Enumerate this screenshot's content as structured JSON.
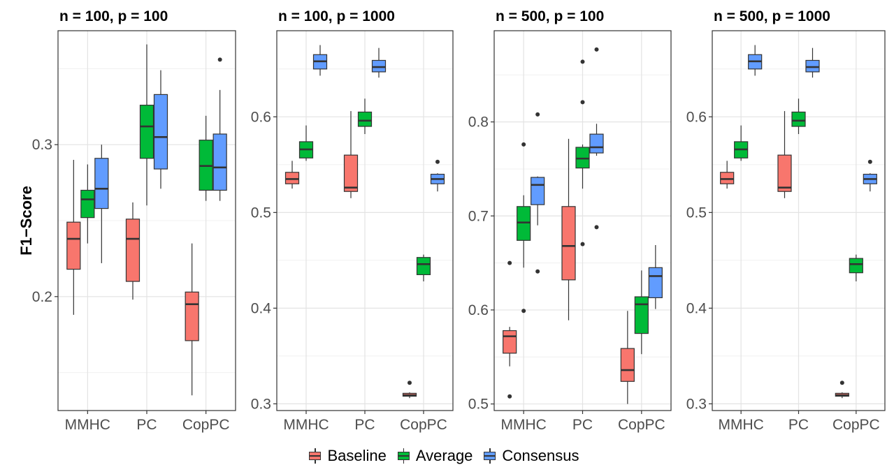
{
  "chart_data": {
    "type": "boxplot",
    "ylabel": "F1−Score",
    "categories": [
      "MMHC",
      "PC",
      "CopPC"
    ],
    "series_names": [
      "Baseline",
      "Average",
      "Consensus"
    ],
    "colors": {
      "Baseline": "#F8766D",
      "Average": "#00BA38",
      "Consensus": "#619CFF"
    },
    "legend_position": "bottom",
    "grid": true,
    "panels": [
      {
        "title": "n = 100, p = 100",
        "ylim": [
          0.125,
          0.375
        ],
        "yticks": [
          0.2,
          0.3
        ],
        "ytick_labels": [
          "0.2",
          "0.3"
        ],
        "boxes": [
          {
            "category": "MMHC",
            "series": "Baseline",
            "lower_whisker": 0.188,
            "q1": 0.218,
            "median": 0.238,
            "q3": 0.249,
            "upper_whisker": 0.29,
            "outliers": []
          },
          {
            "category": "MMHC",
            "series": "Average",
            "lower_whisker": 0.235,
            "q1": 0.252,
            "median": 0.264,
            "q3": 0.27,
            "upper_whisker": 0.287,
            "outliers": []
          },
          {
            "category": "MMHC",
            "series": "Consensus",
            "lower_whisker": 0.222,
            "q1": 0.258,
            "median": 0.271,
            "q3": 0.291,
            "upper_whisker": 0.3,
            "outliers": []
          },
          {
            "category": "PC",
            "series": "Baseline",
            "lower_whisker": 0.198,
            "q1": 0.21,
            "median": 0.238,
            "q3": 0.251,
            "upper_whisker": 0.262,
            "outliers": []
          },
          {
            "category": "PC",
            "series": "Average",
            "lower_whisker": 0.26,
            "q1": 0.291,
            "median": 0.312,
            "q3": 0.326,
            "upper_whisker": 0.366,
            "outliers": []
          },
          {
            "category": "PC",
            "series": "Consensus",
            "lower_whisker": 0.271,
            "q1": 0.284,
            "median": 0.305,
            "q3": 0.333,
            "upper_whisker": 0.349,
            "outliers": []
          },
          {
            "category": "CopPC",
            "series": "Baseline",
            "lower_whisker": 0.135,
            "q1": 0.171,
            "median": 0.195,
            "q3": 0.203,
            "upper_whisker": 0.235,
            "outliers": []
          },
          {
            "category": "CopPC",
            "series": "Average",
            "lower_whisker": 0.263,
            "q1": 0.27,
            "median": 0.286,
            "q3": 0.303,
            "upper_whisker": 0.319,
            "outliers": []
          },
          {
            "category": "CopPC",
            "series": "Consensus",
            "lower_whisker": 0.263,
            "q1": 0.27,
            "median": 0.285,
            "q3": 0.307,
            "upper_whisker": 0.336,
            "outliers": [
              0.356
            ]
          }
        ]
      },
      {
        "title": "n = 100, p = 1000",
        "ylim": [
          0.293,
          0.69
        ],
        "yticks": [
          0.3,
          0.4,
          0.5,
          0.6
        ],
        "ytick_labels": [
          "0.3",
          "0.4",
          "0.5",
          "0.6"
        ],
        "boxes": [
          {
            "category": "MMHC",
            "series": "Baseline",
            "lower_whisker": 0.525,
            "q1": 0.53,
            "median": 0.535,
            "q3": 0.542,
            "upper_whisker": 0.554,
            "outliers": []
          },
          {
            "category": "MMHC",
            "series": "Average",
            "lower_whisker": 0.554,
            "q1": 0.557,
            "median": 0.566,
            "q3": 0.574,
            "upper_whisker": 0.591,
            "outliers": []
          },
          {
            "category": "MMHC",
            "series": "Consensus",
            "lower_whisker": 0.643,
            "q1": 0.65,
            "median": 0.658,
            "q3": 0.665,
            "upper_whisker": 0.675,
            "outliers": []
          },
          {
            "category": "PC",
            "series": "Baseline",
            "lower_whisker": 0.515,
            "q1": 0.522,
            "median": 0.526,
            "q3": 0.56,
            "upper_whisker": 0.606,
            "outliers": []
          },
          {
            "category": "PC",
            "series": "Average",
            "lower_whisker": 0.582,
            "q1": 0.59,
            "median": 0.596,
            "q3": 0.605,
            "upper_whisker": 0.619,
            "outliers": []
          },
          {
            "category": "PC",
            "series": "Consensus",
            "lower_whisker": 0.641,
            "q1": 0.647,
            "median": 0.652,
            "q3": 0.659,
            "upper_whisker": 0.672,
            "outliers": []
          },
          {
            "category": "CopPC",
            "series": "Baseline",
            "lower_whisker": 0.306,
            "q1": 0.308,
            "median": 0.309,
            "q3": 0.311,
            "upper_whisker": 0.312,
            "outliers": [
              0.322
            ]
          },
          {
            "category": "CopPC",
            "series": "Average",
            "lower_whisker": 0.428,
            "q1": 0.435,
            "median": 0.446,
            "q3": 0.453,
            "upper_whisker": 0.456,
            "outliers": []
          },
          {
            "category": "CopPC",
            "series": "Consensus",
            "lower_whisker": 0.522,
            "q1": 0.53,
            "median": 0.535,
            "q3": 0.54,
            "upper_whisker": 0.541,
            "outliers": [
              0.553
            ]
          }
        ]
      },
      {
        "title": "n = 500, p = 100",
        "ylim": [
          0.493,
          0.897
        ],
        "yticks": [
          0.5,
          0.6,
          0.7,
          0.8
        ],
        "ytick_labels": [
          "0.5",
          "0.6",
          "0.7",
          "0.8"
        ],
        "boxes": [
          {
            "category": "MMHC",
            "series": "Baseline",
            "lower_whisker": 0.54,
            "q1": 0.554,
            "median": 0.572,
            "q3": 0.578,
            "upper_whisker": 0.582,
            "outliers": [
              0.65,
              0.508
            ]
          },
          {
            "category": "MMHC",
            "series": "Average",
            "lower_whisker": 0.645,
            "q1": 0.674,
            "median": 0.693,
            "q3": 0.71,
            "upper_whisker": 0.722,
            "outliers": [
              0.776,
              0.599
            ]
          },
          {
            "category": "MMHC",
            "series": "Consensus",
            "lower_whisker": 0.69,
            "q1": 0.712,
            "median": 0.733,
            "q3": 0.741,
            "upper_whisker": 0.742,
            "outliers": [
              0.808,
              0.641
            ]
          },
          {
            "category": "PC",
            "series": "Baseline",
            "lower_whisker": 0.589,
            "q1": 0.632,
            "median": 0.668,
            "q3": 0.71,
            "upper_whisker": 0.782,
            "outliers": []
          },
          {
            "category": "PC",
            "series": "Average",
            "lower_whisker": 0.729,
            "q1": 0.751,
            "median": 0.761,
            "q3": 0.773,
            "upper_whisker": 0.776,
            "outliers": [
              0.864,
              0.821,
              0.67
            ]
          },
          {
            "category": "PC",
            "series": "Consensus",
            "lower_whisker": 0.764,
            "q1": 0.767,
            "median": 0.773,
            "q3": 0.787,
            "upper_whisker": 0.798,
            "outliers": [
              0.877,
              0.688
            ]
          },
          {
            "category": "CopPC",
            "series": "Baseline",
            "lower_whisker": 0.5,
            "q1": 0.524,
            "median": 0.536,
            "q3": 0.559,
            "upper_whisker": 0.599,
            "outliers": []
          },
          {
            "category": "CopPC",
            "series": "Average",
            "lower_whisker": 0.553,
            "q1": 0.575,
            "median": 0.606,
            "q3": 0.614,
            "upper_whisker": 0.642,
            "outliers": []
          },
          {
            "category": "CopPC",
            "series": "Consensus",
            "lower_whisker": 0.601,
            "q1": 0.613,
            "median": 0.636,
            "q3": 0.645,
            "upper_whisker": 0.669,
            "outliers": []
          }
        ]
      },
      {
        "title": "n = 500, p = 1000",
        "ylim": [
          0.293,
          0.69
        ],
        "yticks": [
          0.3,
          0.4,
          0.5,
          0.6
        ],
        "ytick_labels": [
          "0.3",
          "0.4",
          "0.5",
          "0.6"
        ],
        "boxes": [
          {
            "category": "MMHC",
            "series": "Baseline",
            "lower_whisker": 0.525,
            "q1": 0.53,
            "median": 0.535,
            "q3": 0.542,
            "upper_whisker": 0.554,
            "outliers": []
          },
          {
            "category": "MMHC",
            "series": "Average",
            "lower_whisker": 0.554,
            "q1": 0.557,
            "median": 0.566,
            "q3": 0.574,
            "upper_whisker": 0.591,
            "outliers": []
          },
          {
            "category": "MMHC",
            "series": "Consensus",
            "lower_whisker": 0.643,
            "q1": 0.65,
            "median": 0.658,
            "q3": 0.665,
            "upper_whisker": 0.675,
            "outliers": []
          },
          {
            "category": "PC",
            "series": "Baseline",
            "lower_whisker": 0.515,
            "q1": 0.522,
            "median": 0.526,
            "q3": 0.56,
            "upper_whisker": 0.606,
            "outliers": []
          },
          {
            "category": "PC",
            "series": "Average",
            "lower_whisker": 0.582,
            "q1": 0.59,
            "median": 0.596,
            "q3": 0.605,
            "upper_whisker": 0.619,
            "outliers": []
          },
          {
            "category": "PC",
            "series": "Consensus",
            "lower_whisker": 0.641,
            "q1": 0.647,
            "median": 0.652,
            "q3": 0.659,
            "upper_whisker": 0.672,
            "outliers": []
          },
          {
            "category": "CopPC",
            "series": "Baseline",
            "lower_whisker": 0.306,
            "q1": 0.308,
            "median": 0.309,
            "q3": 0.311,
            "upper_whisker": 0.312,
            "outliers": [
              0.322
            ]
          },
          {
            "category": "CopPC",
            "series": "Average",
            "lower_whisker": 0.428,
            "q1": 0.437,
            "median": 0.446,
            "q3": 0.452,
            "upper_whisker": 0.456,
            "outliers": []
          },
          {
            "category": "CopPC",
            "series": "Consensus",
            "lower_whisker": 0.522,
            "q1": 0.53,
            "median": 0.535,
            "q3": 0.54,
            "upper_whisker": 0.541,
            "outliers": [
              0.553
            ]
          }
        ]
      }
    ]
  }
}
